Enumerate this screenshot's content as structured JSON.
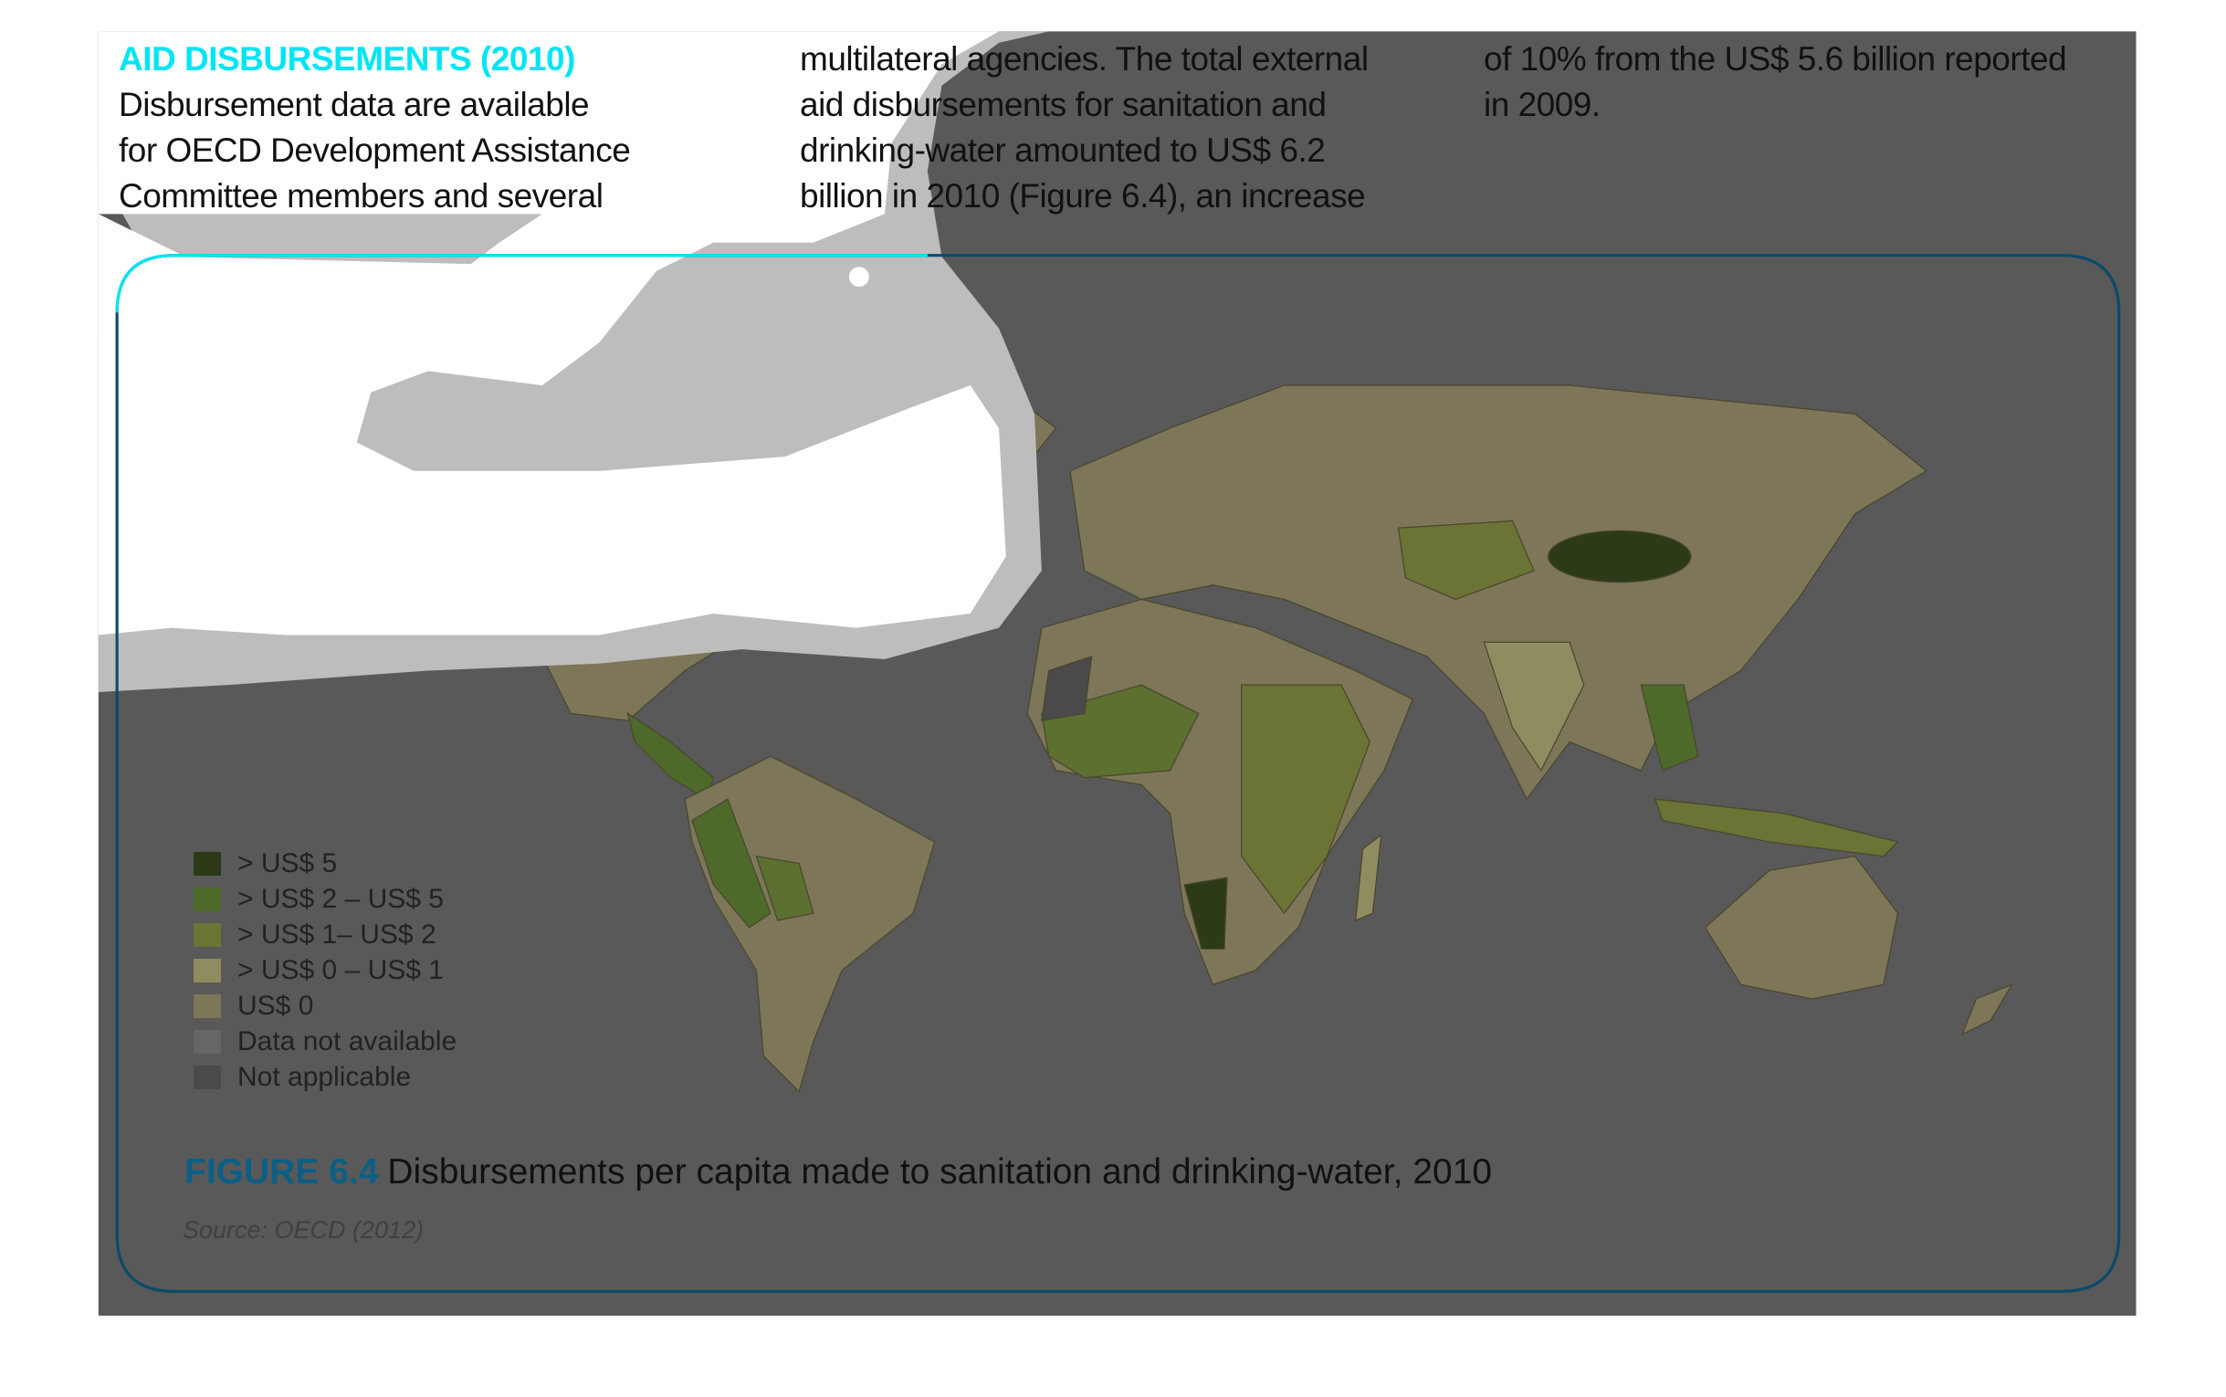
{
  "text": {
    "heading": "AID DISBURSEMENTS (2010)",
    "col1": [
      "Disbursement data are available",
      "for OECD Development Assistance",
      "Committee members and several"
    ],
    "col2": [
      "multilateral agencies. The total external",
      "aid disbursements for sanitation and",
      "drinking-water amounted to US$ 6.2",
      "billion in 2010 (Figure 6.4), an increase"
    ],
    "col3": [
      "of 10% from the US$ 5.6 billion reported",
      "in 2009."
    ]
  },
  "figure": {
    "number": "FIGURE 6.4",
    "caption": "Disbursements per capita made to sanitation and drinking-water, 2010",
    "source": "Source: OECD (2012)",
    "legend": [
      {
        "label": "> US$ 5",
        "color": "#2c3a18"
      },
      {
        "label": "> US$ 2 – US$ 5",
        "color": "#4d6a2a"
      },
      {
        "label": "> US$ 1– US$ 2",
        "color": "#6b7335"
      },
      {
        "label": "> US$ 0 – US$ 1",
        "color": "#8f8c60"
      },
      {
        "label": "US$ 0",
        "color": "#7d7658"
      },
      {
        "label": "Data not available",
        "color": "#666666"
      },
      {
        "label": "Not applicable",
        "color": "#4a4a4a"
      }
    ]
  },
  "colors": {
    "accent": "#00e5f5",
    "figure_number": "#0b5f86",
    "frame": "#0a4a6a",
    "overlay": "#595959"
  }
}
